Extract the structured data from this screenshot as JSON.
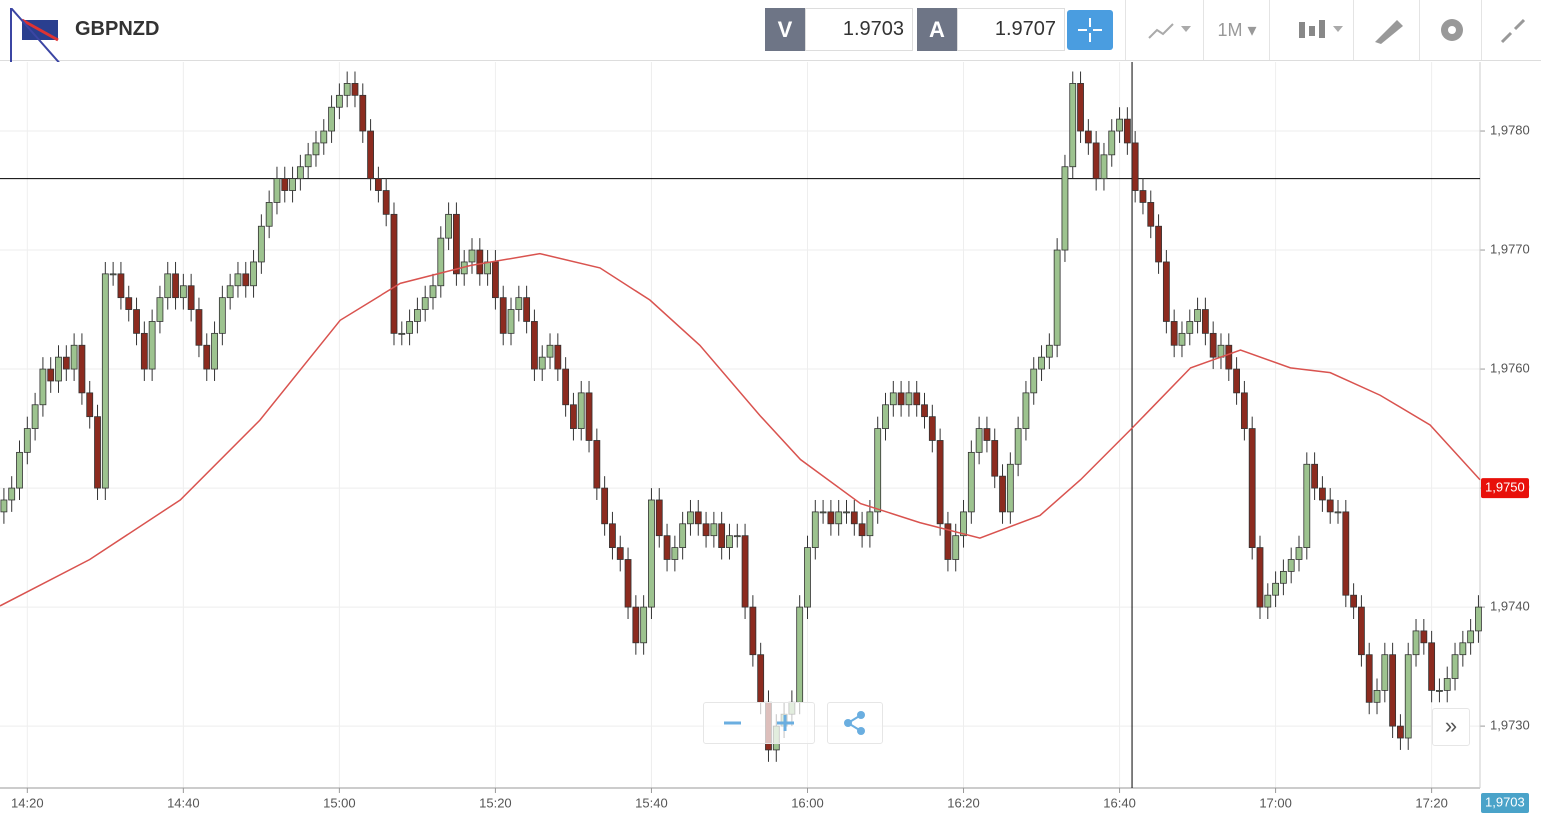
{
  "header": {
    "symbol": "GBPNZD",
    "bid_label": "V",
    "bid": "1.9703",
    "ask_label": "A",
    "ask": "1.9707",
    "timeframe": "1M"
  },
  "chart_data": {
    "type": "candlestick",
    "xlim": [
      856.5,
      1046.2
    ],
    "xticks": [
      {
        "value": 860,
        "label": "14:20"
      },
      {
        "value": 880,
        "label": "14:40"
      },
      {
        "value": 900,
        "label": "15:00"
      },
      {
        "value": 920,
        "label": "15:20"
      },
      {
        "value": 940,
        "label": "15:40"
      },
      {
        "value": 960,
        "label": "16:00"
      },
      {
        "value": 980,
        "label": "16:20"
      },
      {
        "value": 1000,
        "label": "16:40"
      },
      {
        "value": 1020,
        "label": "17:00"
      },
      {
        "value": 1040,
        "label": "17:20"
      }
    ],
    "ylim": [
      1.97248,
      1.97858
    ],
    "yticks": [
      {
        "value": 1.973,
        "label": "1,9730"
      },
      {
        "value": 1.974,
        "label": "1,9740"
      },
      {
        "value": 1.975,
        "label": "1,9750"
      },
      {
        "value": 1.976,
        "label": "1,9760"
      },
      {
        "value": 1.977,
        "label": "1,9770"
      },
      {
        "value": 1.978,
        "label": "1,9780"
      }
    ],
    "grid": true,
    "up_color": "#9dc38f",
    "down_color": "#8c2b1f",
    "x": [
      857,
      858,
      859,
      860,
      861,
      862,
      863,
      864,
      865,
      866,
      867,
      868,
      869,
      870,
      871,
      872,
      873,
      874,
      875,
      876,
      877,
      878,
      879,
      880,
      881,
      882,
      883,
      884,
      885,
      886,
      887,
      888,
      889,
      890,
      891,
      892,
      893,
      894,
      895,
      896,
      897,
      898,
      899,
      900,
      901,
      902,
      903,
      904,
      905,
      906,
      907,
      908,
      909,
      910,
      911,
      912,
      913,
      914,
      915,
      916,
      917,
      918,
      919,
      920,
      921,
      922,
      923,
      924,
      925,
      926,
      927,
      928,
      929,
      930,
      931,
      932,
      933,
      934,
      935,
      936,
      937,
      938,
      939,
      940,
      941,
      942,
      943,
      944,
      945,
      946,
      947,
      948,
      949,
      950,
      951,
      952,
      953,
      954,
      955,
      956,
      957,
      958,
      959,
      960,
      961,
      962,
      963,
      964,
      965,
      966,
      967,
      968,
      969,
      970,
      971,
      972,
      973,
      974,
      975,
      976,
      977,
      978,
      979,
      980,
      981,
      982,
      983,
      984,
      985,
      986,
      987,
      988,
      989,
      990,
      991,
      992,
      993,
      994,
      995,
      996,
      997,
      998,
      999,
      1000,
      1001,
      1002,
      1003,
      1004,
      1005,
      1006,
      1007,
      1008,
      1009,
      1010,
      1011,
      1012,
      1013,
      1014,
      1015,
      1016,
      1017,
      1018,
      1019,
      1020,
      1021,
      1022,
      1023,
      1024,
      1025,
      1026,
      1027,
      1028,
      1029,
      1030,
      1031,
      1032,
      1033,
      1034,
      1035,
      1036,
      1037,
      1038,
      1039,
      1040,
      1041,
      1042,
      1043,
      1044,
      1045,
      1046
    ],
    "candles": [
      [
        1.9748,
        1.975,
        1.9747,
        1.9749
      ],
      [
        1.9749,
        1.9751,
        1.9748,
        1.975
      ],
      [
        1.975,
        1.9754,
        1.9749,
        1.9753
      ],
      [
        1.9753,
        1.9756,
        1.9752,
        1.9755
      ],
      [
        1.9755,
        1.9758,
        1.9754,
        1.9757
      ],
      [
        1.9757,
        1.9761,
        1.9756,
        1.976
      ],
      [
        1.976,
        1.9761,
        1.9758,
        1.9759
      ],
      [
        1.9759,
        1.9762,
        1.9758,
        1.9761
      ],
      [
        1.9761,
        1.9762,
        1.9759,
        1.976
      ],
      [
        1.976,
        1.9763,
        1.9759,
        1.9762
      ],
      [
        1.9762,
        1.9763,
        1.9757,
        1.9758
      ],
      [
        1.9758,
        1.9759,
        1.9755,
        1.9756
      ],
      [
        1.9756,
        1.9757,
        1.9749,
        1.975
      ],
      [
        1.975,
        1.9769,
        1.9749,
        1.9768
      ],
      [
        1.9768,
        1.9769,
        1.9767,
        1.9768
      ],
      [
        1.9768,
        1.9769,
        1.9765,
        1.9766
      ],
      [
        1.9766,
        1.9767,
        1.9764,
        1.9765
      ],
      [
        1.9765,
        1.9766,
        1.9762,
        1.9763
      ],
      [
        1.9763,
        1.9764,
        1.9759,
        1.976
      ],
      [
        1.976,
        1.9765,
        1.9759,
        1.9764
      ],
      [
        1.9764,
        1.9767,
        1.9763,
        1.9766
      ],
      [
        1.9766,
        1.9769,
        1.9765,
        1.9768
      ],
      [
        1.9768,
        1.9769,
        1.9765,
        1.9766
      ],
      [
        1.9766,
        1.9768,
        1.9765,
        1.9767
      ],
      [
        1.9767,
        1.9768,
        1.9764,
        1.9765
      ],
      [
        1.9765,
        1.9766,
        1.9761,
        1.9762
      ],
      [
        1.9762,
        1.9763,
        1.9759,
        1.976
      ],
      [
        1.976,
        1.9764,
        1.9759,
        1.9763
      ],
      [
        1.9763,
        1.9767,
        1.9762,
        1.9766
      ],
      [
        1.9766,
        1.9768,
        1.9765,
        1.9767
      ],
      [
        1.9767,
        1.9769,
        1.9766,
        1.9768
      ],
      [
        1.9768,
        1.9769,
        1.9766,
        1.9767
      ],
      [
        1.9767,
        1.977,
        1.9766,
        1.9769
      ],
      [
        1.9769,
        1.9773,
        1.9768,
        1.9772
      ],
      [
        1.9772,
        1.9775,
        1.9771,
        1.9774
      ],
      [
        1.9774,
        1.9777,
        1.9773,
        1.9776
      ],
      [
        1.9776,
        1.9777,
        1.9774,
        1.9775
      ],
      [
        1.9775,
        1.9777,
        1.9774,
        1.9776
      ],
      [
        1.9776,
        1.9778,
        1.9775,
        1.9777
      ],
      [
        1.9777,
        1.9779,
        1.9776,
        1.9778
      ],
      [
        1.9778,
        1.978,
        1.9777,
        1.9779
      ],
      [
        1.9779,
        1.9781,
        1.9778,
        1.978
      ],
      [
        1.978,
        1.9783,
        1.9779,
        1.9782
      ],
      [
        1.9782,
        1.9784,
        1.9781,
        1.9783
      ],
      [
        1.9783,
        1.9785,
        1.9782,
        1.9784
      ],
      [
        1.9784,
        1.9785,
        1.9782,
        1.9783
      ],
      [
        1.9783,
        1.9784,
        1.9779,
        1.978
      ],
      [
        1.978,
        1.9781,
        1.9775,
        1.9776
      ],
      [
        1.9776,
        1.9777,
        1.9774,
        1.9775
      ],
      [
        1.9775,
        1.9776,
        1.9772,
        1.9773
      ],
      [
        1.9773,
        1.9774,
        1.9762,
        1.9763
      ],
      [
        1.9763,
        1.9764,
        1.9762,
        1.9763
      ],
      [
        1.9763,
        1.9765,
        1.9762,
        1.9764
      ],
      [
        1.9764,
        1.9766,
        1.9763,
        1.9765
      ],
      [
        1.9765,
        1.9767,
        1.9764,
        1.9766
      ],
      [
        1.9766,
        1.9768,
        1.9765,
        1.9767
      ],
      [
        1.9767,
        1.9772,
        1.9766,
        1.9771
      ],
      [
        1.9771,
        1.9774,
        1.977,
        1.9773
      ],
      [
        1.9773,
        1.9774,
        1.9767,
        1.9768
      ],
      [
        1.9768,
        1.977,
        1.9767,
        1.9769
      ],
      [
        1.9769,
        1.9771,
        1.9768,
        1.977
      ],
      [
        1.977,
        1.9771,
        1.9767,
        1.9768
      ],
      [
        1.9768,
        1.977,
        1.9767,
        1.9769
      ],
      [
        1.9769,
        1.977,
        1.9765,
        1.9766
      ],
      [
        1.9766,
        1.9767,
        1.9762,
        1.9763
      ],
      [
        1.9763,
        1.9766,
        1.9762,
        1.9765
      ],
      [
        1.9765,
        1.9767,
        1.9764,
        1.9766
      ],
      [
        1.9766,
        1.9767,
        1.9763,
        1.9764
      ],
      [
        1.9764,
        1.9765,
        1.9759,
        1.976
      ],
      [
        1.976,
        1.9762,
        1.9759,
        1.9761
      ],
      [
        1.9761,
        1.9763,
        1.976,
        1.9762
      ],
      [
        1.9762,
        1.9763,
        1.9759,
        1.976
      ],
      [
        1.976,
        1.9761,
        1.9756,
        1.9757
      ],
      [
        1.9757,
        1.9758,
        1.9754,
        1.9755
      ],
      [
        1.9755,
        1.9759,
        1.9754,
        1.9758
      ],
      [
        1.9758,
        1.9759,
        1.9753,
        1.9754
      ],
      [
        1.9754,
        1.9755,
        1.9749,
        1.975
      ],
      [
        1.975,
        1.9751,
        1.9746,
        1.9747
      ],
      [
        1.9747,
        1.9748,
        1.9744,
        1.9745
      ],
      [
        1.9745,
        1.9746,
        1.9743,
        1.9744
      ],
      [
        1.9744,
        1.9745,
        1.9739,
        1.974
      ],
      [
        1.974,
        1.9741,
        1.9736,
        1.9737
      ],
      [
        1.9737,
        1.9741,
        1.9736,
        1.974
      ],
      [
        1.974,
        1.975,
        1.9739,
        1.9749
      ],
      [
        1.9749,
        1.975,
        1.9745,
        1.9746
      ],
      [
        1.9746,
        1.9747,
        1.9743,
        1.9744
      ],
      [
        1.9744,
        1.9746,
        1.9743,
        1.9745
      ],
      [
        1.9745,
        1.9748,
        1.9744,
        1.9747
      ],
      [
        1.9747,
        1.9749,
        1.9746,
        1.9748
      ],
      [
        1.9748,
        1.9749,
        1.9746,
        1.9747
      ],
      [
        1.9747,
        1.9748,
        1.9745,
        1.9746
      ],
      [
        1.9746,
        1.9748,
        1.9745,
        1.9747
      ],
      [
        1.9747,
        1.9748,
        1.9744,
        1.9745
      ],
      [
        1.9745,
        1.9747,
        1.9744,
        1.9746
      ],
      [
        1.9746,
        1.9747,
        1.9745,
        1.9746
      ],
      [
        1.9746,
        1.9747,
        1.9739,
        1.974
      ],
      [
        1.974,
        1.9741,
        1.9735,
        1.9736
      ],
      [
        1.9736,
        1.9737,
        1.9731,
        1.9732
      ],
      [
        1.9732,
        1.9733,
        1.9727,
        1.9728
      ],
      [
        1.9728,
        1.9731,
        1.9727,
        1.973
      ],
      [
        1.973,
        1.9732,
        1.9729,
        1.9731
      ],
      [
        1.9731,
        1.9733,
        1.973,
        1.9732
      ],
      [
        1.9732,
        1.9741,
        1.9731,
        1.974
      ],
      [
        1.974,
        1.9746,
        1.9739,
        1.9745
      ],
      [
        1.9745,
        1.9749,
        1.9744,
        1.9748
      ],
      [
        1.9748,
        1.9749,
        1.9747,
        1.9748
      ],
      [
        1.9748,
        1.9749,
        1.9746,
        1.9747
      ],
      [
        1.9747,
        1.9749,
        1.9746,
        1.9748
      ],
      [
        1.9748,
        1.9749,
        1.9747,
        1.9748
      ],
      [
        1.9748,
        1.9749,
        1.9746,
        1.9747
      ],
      [
        1.9747,
        1.9748,
        1.9745,
        1.9746
      ],
      [
        1.9746,
        1.9749,
        1.9745,
        1.9748
      ],
      [
        1.9748,
        1.9756,
        1.9747,
        1.9755
      ],
      [
        1.9755,
        1.9758,
        1.9754,
        1.9757
      ],
      [
        1.9757,
        1.9759,
        1.9756,
        1.9758
      ],
      [
        1.9758,
        1.9759,
        1.9756,
        1.9757
      ],
      [
        1.9757,
        1.9759,
        1.9756,
        1.9758
      ],
      [
        1.9758,
        1.9759,
        1.9756,
        1.9757
      ],
      [
        1.9757,
        1.9758,
        1.9755,
        1.9756
      ],
      [
        1.9756,
        1.9757,
        1.9753,
        1.9754
      ],
      [
        1.9754,
        1.9755,
        1.9746,
        1.9747
      ],
      [
        1.9747,
        1.9748,
        1.9743,
        1.9744
      ],
      [
        1.9744,
        1.9747,
        1.9743,
        1.9746
      ],
      [
        1.9746,
        1.9749,
        1.9745,
        1.9748
      ],
      [
        1.9748,
        1.9754,
        1.9747,
        1.9753
      ],
      [
        1.9753,
        1.9756,
        1.9752,
        1.9755
      ],
      [
        1.9755,
        1.9756,
        1.9753,
        1.9754
      ],
      [
        1.9754,
        1.9755,
        1.975,
        1.9751
      ],
      [
        1.9751,
        1.9752,
        1.9747,
        1.9748
      ],
      [
        1.9748,
        1.9753,
        1.9747,
        1.9752
      ],
      [
        1.9752,
        1.9756,
        1.9751,
        1.9755
      ],
      [
        1.9755,
        1.9759,
        1.9754,
        1.9758
      ],
      [
        1.9758,
        1.9761,
        1.9757,
        1.976
      ],
      [
        1.976,
        1.9762,
        1.9759,
        1.9761
      ],
      [
        1.9761,
        1.9763,
        1.976,
        1.9762
      ],
      [
        1.9762,
        1.9771,
        1.9761,
        1.977
      ],
      [
        1.977,
        1.9778,
        1.9769,
        1.9777
      ],
      [
        1.9777,
        1.9785,
        1.9776,
        1.9784
      ],
      [
        1.9784,
        1.9785,
        1.9779,
        1.978
      ],
      [
        1.978,
        1.9781,
        1.9778,
        1.9779
      ],
      [
        1.9779,
        1.978,
        1.9775,
        1.9776
      ],
      [
        1.9776,
        1.9779,
        1.9775,
        1.9778
      ],
      [
        1.9778,
        1.9781,
        1.9777,
        1.978
      ],
      [
        1.978,
        1.9782,
        1.9779,
        1.9781
      ],
      [
        1.9781,
        1.9782,
        1.9778,
        1.9779
      ],
      [
        1.9779,
        1.978,
        1.9774,
        1.9775
      ],
      [
        1.9775,
        1.9776,
        1.9773,
        1.9774
      ],
      [
        1.9774,
        1.9775,
        1.9771,
        1.9772
      ],
      [
        1.9772,
        1.9773,
        1.9768,
        1.9769
      ],
      [
        1.9769,
        1.977,
        1.9763,
        1.9764
      ],
      [
        1.9764,
        1.9765,
        1.9761,
        1.9762
      ],
      [
        1.9762,
        1.9764,
        1.9761,
        1.9763
      ],
      [
        1.9763,
        1.9765,
        1.9762,
        1.9764
      ],
      [
        1.9764,
        1.9766,
        1.9763,
        1.9765
      ],
      [
        1.9765,
        1.9766,
        1.9762,
        1.9763
      ],
      [
        1.9763,
        1.9764,
        1.976,
        1.9761
      ],
      [
        1.9761,
        1.9763,
        1.976,
        1.9762
      ],
      [
        1.9762,
        1.9763,
        1.9759,
        1.976
      ],
      [
        1.976,
        1.9761,
        1.9757,
        1.9758
      ],
      [
        1.9758,
        1.9759,
        1.9754,
        1.9755
      ],
      [
        1.9755,
        1.9756,
        1.9744,
        1.9745
      ],
      [
        1.9745,
        1.9746,
        1.9739,
        1.974
      ],
      [
        1.974,
        1.9742,
        1.9739,
        1.9741
      ],
      [
        1.9741,
        1.9743,
        1.974,
        1.9742
      ],
      [
        1.9742,
        1.9744,
        1.9741,
        1.9743
      ],
      [
        1.9743,
        1.9745,
        1.9742,
        1.9744
      ],
      [
        1.9744,
        1.9746,
        1.9743,
        1.9745
      ],
      [
        1.9745,
        1.9753,
        1.9744,
        1.9752
      ],
      [
        1.9752,
        1.9753,
        1.9749,
        1.975
      ],
      [
        1.975,
        1.9751,
        1.9748,
        1.9749
      ],
      [
        1.9749,
        1.975,
        1.9747,
        1.9748
      ],
      [
        1.9748,
        1.9749,
        1.9747,
        1.9748
      ],
      [
        1.9748,
        1.9749,
        1.974,
        1.9741
      ],
      [
        1.9741,
        1.9742,
        1.9739,
        1.974
      ],
      [
        1.974,
        1.9741,
        1.9735,
        1.9736
      ],
      [
        1.9736,
        1.9737,
        1.9731,
        1.9732
      ],
      [
        1.9732,
        1.9734,
        1.9731,
        1.9733
      ],
      [
        1.9733,
        1.9737,
        1.9732,
        1.9736
      ],
      [
        1.9736,
        1.9737,
        1.9729,
        1.973
      ],
      [
        1.973,
        1.9731,
        1.9728,
        1.9729
      ],
      [
        1.9729,
        1.9737,
        1.9728,
        1.9736
      ],
      [
        1.9736,
        1.9739,
        1.9735,
        1.9738
      ],
      [
        1.9738,
        1.9739,
        1.9736,
        1.9737
      ],
      [
        1.9737,
        1.9738,
        1.9732,
        1.9733
      ],
      [
        1.9733,
        1.9734,
        1.9732,
        1.9733
      ],
      [
        1.9733,
        1.9735,
        1.9732,
        1.9734
      ],
      [
        1.9734,
        1.9737,
        1.9733,
        1.9736
      ],
      [
        1.9736,
        1.9738,
        1.9735,
        1.9737
      ],
      [
        1.9737,
        1.9739,
        1.9736,
        1.9738
      ],
      [
        1.9738,
        1.9741,
        1.9737,
        1.974
      ]
    ],
    "ma": {
      "color": "#d9534f",
      "x": [
        856.5,
        868.0,
        879.6,
        889.8,
        900.1,
        907.8,
        916.8,
        925.7,
        933.4,
        939.8,
        946.2,
        953.9,
        959.1,
        966.8,
        974.4,
        982.1,
        989.8,
        995.0,
        1001.4,
        1009.1,
        1015.5,
        1021.9,
        1027.0,
        1033.4,
        1039.8,
        1046.2
      ],
      "values": [
        1.97401,
        1.9744,
        1.9749,
        1.97557,
        1.97641,
        1.97672,
        1.97687,
        1.97697,
        1.97685,
        1.97658,
        1.9762,
        1.97561,
        1.97524,
        1.97487,
        1.97471,
        1.97458,
        1.97477,
        1.97507,
        1.97549,
        1.97601,
        1.97616,
        1.97601,
        1.97597,
        1.97578,
        1.97553,
        1.97507
      ]
    },
    "crosshair": {
      "x": 1001.6,
      "y": 1.9776
    },
    "price_tags": [
      {
        "value": 1.975,
        "label": "1,9750",
        "color": "#e8100a"
      },
      {
        "value": 1.9703,
        "label": "1,9703",
        "color": "#4aa3c9"
      }
    ]
  }
}
